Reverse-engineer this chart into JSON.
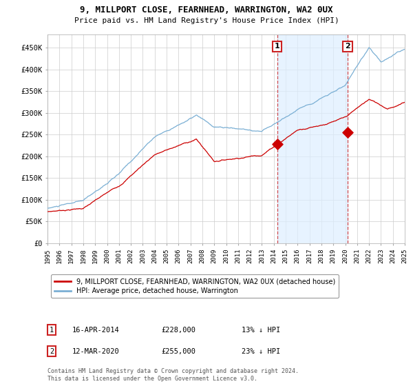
{
  "title1": "9, MILLPORT CLOSE, FEARNHEAD, WARRINGTON, WA2 0UX",
  "title2": "Price paid vs. HM Land Registry's House Price Index (HPI)",
  "ylabel_ticks": [
    "£0",
    "£50K",
    "£100K",
    "£150K",
    "£200K",
    "£250K",
    "£300K",
    "£350K",
    "£400K",
    "£450K"
  ],
  "ytick_values": [
    0,
    50000,
    100000,
    150000,
    200000,
    250000,
    300000,
    350000,
    400000,
    450000
  ],
  "ylim": [
    0,
    480000
  ],
  "xlim": [
    1995,
    2025
  ],
  "sale1": {
    "date": "16-APR-2014",
    "price": 228000,
    "label": "1",
    "x_year": 2014.29
  },
  "sale2": {
    "date": "12-MAR-2020",
    "price": 255000,
    "label": "2",
    "x_year": 2020.21
  },
  "legend_line1": "9, MILLPORT CLOSE, FEARNHEAD, WARRINGTON, WA2 0UX (detached house)",
  "legend_line2": "HPI: Average price, detached house, Warrington",
  "footnote1": "Contains HM Land Registry data © Crown copyright and database right 2024.",
  "footnote2": "This data is licensed under the Open Government Licence v3.0.",
  "hpi_color": "#7aafd4",
  "hpi_fill_color": "#ddeeff",
  "sale_color": "#cc0000",
  "annotation_box_color": "#cc2222",
  "grid_color": "#cccccc",
  "background_color": "#ffffff"
}
